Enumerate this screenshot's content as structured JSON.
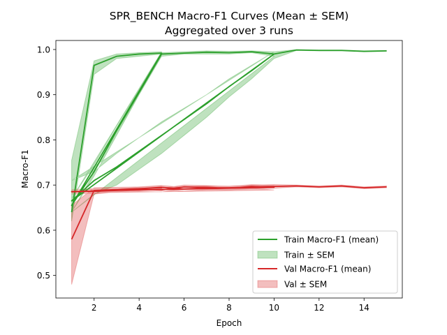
{
  "chart_data": {
    "type": "line",
    "title": "SPR_BENCH Macro-F1 Curves (Mean ± SEM)",
    "subtitle": "Aggregated over 3 runs",
    "xlabel": "Epoch",
    "ylabel": "Macro-F1",
    "xlim": [
      0.3,
      15.7
    ],
    "ylim": [
      0.45,
      1.02
    ],
    "xticks": [
      2,
      4,
      6,
      8,
      10,
      12,
      14
    ],
    "yticks": [
      0.5,
      0.6,
      0.7,
      0.8,
      0.9,
      1.0
    ],
    "xtick_labels": [
      "2",
      "4",
      "6",
      "8",
      "10",
      "12",
      "14"
    ],
    "ytick_labels": [
      "0.5",
      "0.6",
      "0.7",
      "0.8",
      "0.9",
      "1.0"
    ],
    "grid": false,
    "legend_position": "lower-right",
    "legend": {
      "train_mean": "Train Macro-F1 (mean)",
      "train_sem": "Train ± SEM",
      "val_mean": "Val Macro-F1 (mean)",
      "val_sem": "Val ± SEM"
    },
    "colors": {
      "train": "#2ca02c",
      "val": "#d62728"
    },
    "series": [
      {
        "name": "Train Macro-F1 (mean)",
        "x": [
          1,
          2,
          3,
          4,
          5,
          1,
          2,
          3,
          4,
          5,
          6,
          7,
          8,
          9,
          10,
          1,
          2,
          3,
          4,
          5,
          6,
          7,
          8,
          9,
          10,
          11,
          12,
          13,
          14,
          15
        ],
        "y": [
          0.64,
          0.965,
          0.985,
          0.99,
          0.992,
          0.655,
          0.73,
          0.82,
          0.905,
          0.99,
          0.992,
          0.994,
          0.993,
          0.995,
          0.99,
          0.665,
          0.71,
          0.74,
          0.775,
          0.81,
          0.845,
          0.88,
          0.918,
          0.953,
          0.99,
          0.999,
          0.998,
          0.998,
          0.996,
          0.997
        ],
        "lower": [
          0.62,
          0.945,
          0.98,
          0.985,
          0.99,
          0.64,
          0.72,
          0.81,
          0.9,
          0.985,
          0.99,
          0.99,
          0.99,
          0.993,
          0.985,
          0.64,
          0.68,
          0.7,
          0.735,
          0.77,
          0.81,
          0.85,
          0.895,
          0.935,
          0.98,
          0.998,
          0.997,
          0.997,
          0.995,
          0.996
        ],
        "upper": [
          0.755,
          0.975,
          0.99,
          0.993,
          0.995,
          0.67,
          0.745,
          0.83,
          0.91,
          0.993,
          0.995,
          0.997,
          0.996,
          0.997,
          0.995,
          0.71,
          0.73,
          0.77,
          0.805,
          0.84,
          0.87,
          0.9,
          0.935,
          0.965,
          0.995,
          1.0,
          0.999,
          0.999,
          0.997,
          0.998
        ]
      },
      {
        "name": "Val Macro-F1 (mean)",
        "x": [
          1,
          2,
          3,
          4,
          5,
          1,
          2,
          3,
          4,
          5,
          6,
          7,
          8,
          9,
          10,
          1,
          2,
          3,
          4,
          5,
          6,
          7,
          8,
          9,
          10,
          11,
          12,
          13,
          14,
          15
        ],
        "y": [
          0.58,
          0.688,
          0.69,
          0.692,
          0.694,
          0.685,
          0.686,
          0.688,
          0.69,
          0.689,
          0.696,
          0.695,
          0.693,
          0.697,
          0.695,
          0.686,
          0.687,
          0.688,
          0.692,
          0.695,
          0.691,
          0.694,
          0.694,
          0.696,
          0.697,
          0.698,
          0.696,
          0.698,
          0.694,
          0.696
        ],
        "lower": [
          0.48,
          0.68,
          0.685,
          0.688,
          0.69,
          0.68,
          0.682,
          0.684,
          0.686,
          0.685,
          0.692,
          0.691,
          0.689,
          0.693,
          0.689,
          0.682,
          0.683,
          0.684,
          0.688,
          0.691,
          0.687,
          0.69,
          0.69,
          0.692,
          0.693,
          0.696,
          0.694,
          0.696,
          0.692,
          0.694
        ],
        "upper": [
          0.655,
          0.694,
          0.695,
          0.696,
          0.698,
          0.69,
          0.69,
          0.692,
          0.694,
          0.693,
          0.7,
          0.699,
          0.697,
          0.701,
          0.7,
          0.69,
          0.691,
          0.692,
          0.696,
          0.699,
          0.695,
          0.698,
          0.698,
          0.7,
          0.701,
          0.7,
          0.698,
          0.7,
          0.696,
          0.698
        ]
      }
    ]
  }
}
